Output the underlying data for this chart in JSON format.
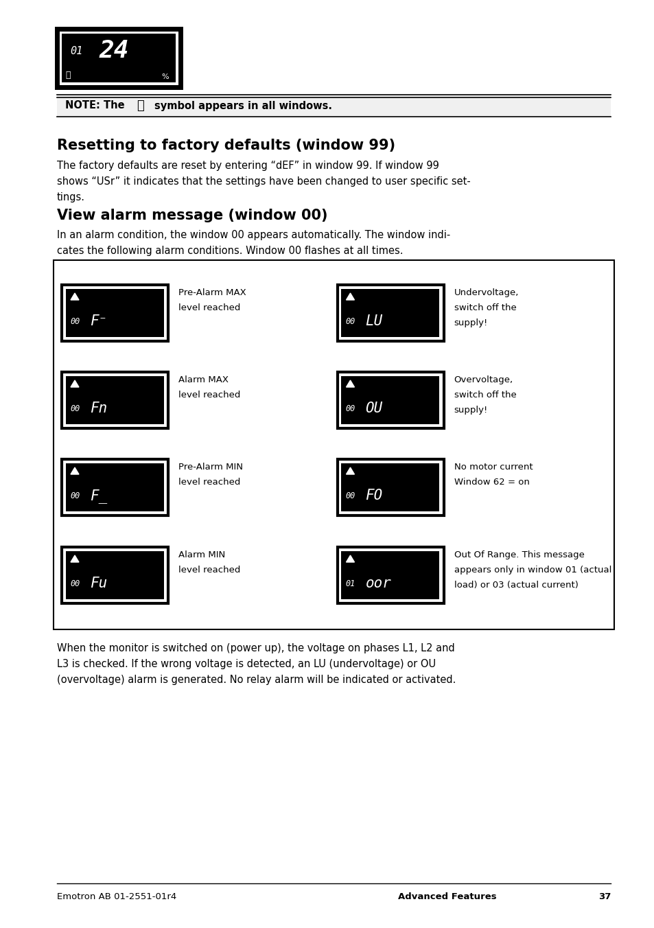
{
  "page_bg": "#ffffff",
  "section1_title": "Resetting to factory defaults (window 99)",
  "section1_body_lines": [
    "The factory defaults are reset by entering “dEF” in window 99. If window 99",
    "shows “USr” it indicates that the settings have been changed to user specific set-",
    "tings."
  ],
  "section2_title": "View alarm message (window 00)",
  "section2_body_lines": [
    "In an alarm condition, the window 00 appears automatically. The window indi-",
    "cates the following alarm conditions. Window 00 flashes at all times."
  ],
  "alarm_rows": [
    {
      "left_prefix": "00",
      "left_code": "F⁻",
      "left_label": [
        "Pre-Alarm MAX",
        "level reached"
      ],
      "right_prefix": "00",
      "right_code": "LU",
      "right_label": [
        "Undervoltage,",
        "switch off the",
        "supply!"
      ]
    },
    {
      "left_prefix": "00",
      "left_code": "Fn",
      "left_label": [
        "Alarm MAX",
        "level reached"
      ],
      "right_prefix": "00",
      "right_code": "OU",
      "right_label": [
        "Overvoltage,",
        "switch off the",
        "supply!"
      ]
    },
    {
      "left_prefix": "00",
      "left_code": "F_",
      "left_label": [
        "Pre-Alarm MIN",
        "level reached"
      ],
      "right_prefix": "00",
      "right_code": "FO",
      "right_label": [
        "No motor current",
        "Window 62 = on"
      ]
    },
    {
      "left_prefix": "00",
      "left_code": "Fu",
      "left_label": [
        "Alarm MIN",
        "level reached"
      ],
      "right_prefix": "01",
      "right_code": "oor",
      "right_label": [
        "Out Of Range. This message",
        "appears only in window 01 (actual",
        "load) or 03 (actual current)"
      ]
    }
  ],
  "bottom_text_lines": [
    "When the monitor is switched on (power up), the voltage on phases L1, L2 and",
    "L3 is checked. If the wrong voltage is detected, an LU (undervoltage) or OU",
    "(overvoltage) alarm is generated. No relay alarm will be indicated or activated."
  ],
  "footer_left": "Emotron AB 01-2551-01r4",
  "footer_center": "Advanced Features",
  "footer_page": "37"
}
